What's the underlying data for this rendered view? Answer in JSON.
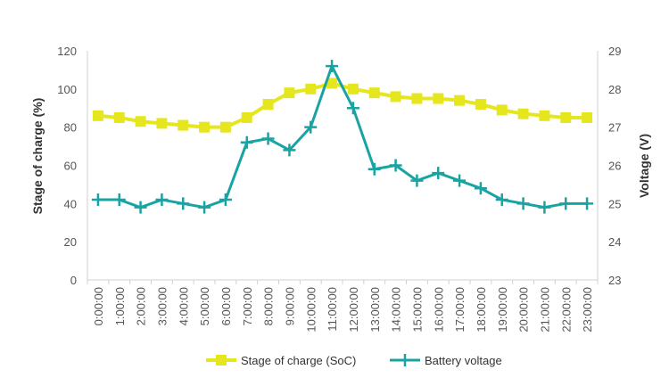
{
  "chart_data": {
    "type": "line",
    "categories": [
      "0:00:00",
      "1:00:00",
      "2:00:00",
      "3:00:00",
      "4:00:00",
      "5:00:00",
      "6:00:00",
      "7:00:00",
      "8:00:00",
      "9:00:00",
      "10:00:00",
      "11:00:00",
      "12:00:00",
      "13:00:00",
      "14:00:00",
      "15:00:00",
      "16:00:00",
      "17:00:00",
      "18:00:00",
      "19:00:00",
      "20:00:00",
      "21:00:00",
      "22:00:00",
      "23:00:00"
    ],
    "series": [
      {
        "name": "Stage of charge (SoC)",
        "axis": "left",
        "color": "#e6e61e",
        "marker": "square",
        "values": [
          86,
          85,
          83,
          82,
          81,
          80,
          80,
          85,
          92,
          98,
          100,
          103,
          100,
          98,
          96,
          95,
          95,
          94,
          92,
          89,
          87,
          86,
          85,
          85
        ]
      },
      {
        "name": "Battery voltage",
        "axis": "right",
        "color": "#1aa3a3",
        "marker": "plus",
        "values": [
          25.1,
          25.1,
          24.9,
          25.1,
          25.0,
          24.9,
          25.1,
          26.6,
          26.7,
          26.4,
          27.0,
          28.6,
          27.5,
          25.9,
          26.0,
          25.6,
          25.8,
          25.6,
          25.4,
          25.1,
          25.0,
          24.9,
          25.0,
          25.0
        ]
      }
    ],
    "ylabel": "Stage of charge (%)",
    "ylabel_right": "Voltage (V)",
    "ylim": [
      0,
      120
    ],
    "yticks": [
      "0",
      "20",
      "40",
      "60",
      "80",
      "100",
      "120"
    ],
    "ylim_right": [
      23,
      29
    ],
    "yticks_right": [
      "23",
      "24",
      "25",
      "26",
      "27",
      "28",
      "29"
    ],
    "grid": false,
    "legend": "bottom"
  }
}
